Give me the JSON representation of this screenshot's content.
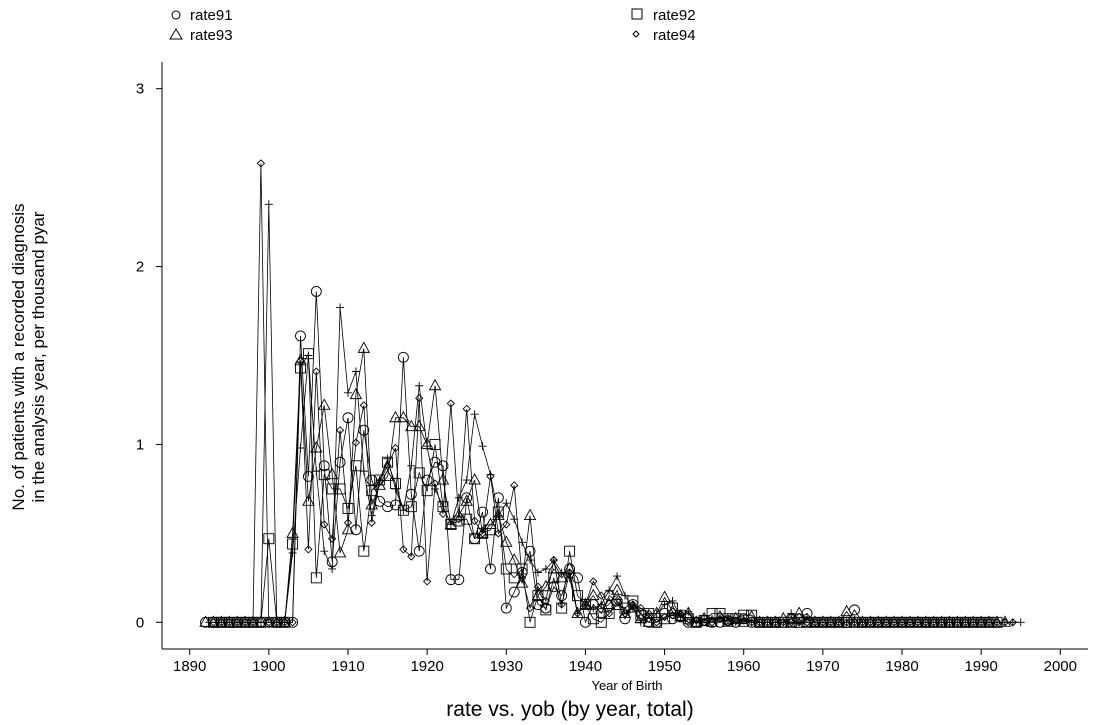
{
  "chart_data": {
    "type": "line",
    "title": "rate vs. yob (by year, total)",
    "xlabel": "Year of Birth",
    "ylabel_lines": [
      "No. of patients with a recorded diagnosis",
      "in the analysis year, per thousand pyar"
    ],
    "xlim": [
      1886.5,
      2003.5
    ],
    "ylim": [
      -0.15,
      3.15
    ],
    "x_ticks": [
      1890,
      1900,
      1910,
      1920,
      1930,
      1940,
      1950,
      1960,
      1970,
      1980,
      1990,
      2000
    ],
    "y_ticks": [
      0,
      1,
      2,
      3
    ],
    "grid": false,
    "legend_position": "top",
    "series": [
      {
        "name": "rate91",
        "marker": "circle",
        "x": [
          1892,
          1893,
          1894,
          1895,
          1896,
          1897,
          1898,
          1899,
          1900,
          1901,
          1902,
          1903,
          1904,
          1905,
          1906,
          1907,
          1908,
          1909,
          1910,
          1911,
          1912,
          1913,
          1914,
          1915,
          1916,
          1917,
          1918,
          1919,
          1920,
          1921,
          1922,
          1923,
          1924,
          1925,
          1926,
          1927,
          1928,
          1929,
          1930,
          1931,
          1932,
          1933,
          1934,
          1935,
          1936,
          1937,
          1938,
          1939,
          1940,
          1941,
          1942,
          1943,
          1944,
          1945,
          1946,
          1947,
          1948,
          1949,
          1950,
          1951,
          1952,
          1953,
          1954,
          1955,
          1956,
          1957,
          1958,
          1959,
          1960,
          1961,
          1962,
          1963,
          1964,
          1965,
          1966,
          1967,
          1968,
          1969,
          1970,
          1971,
          1972,
          1973,
          1974,
          1975,
          1976,
          1977,
          1978,
          1979,
          1980,
          1981,
          1982,
          1983,
          1984,
          1985,
          1986,
          1987,
          1988,
          1989,
          1990,
          1991
        ],
        "y": [
          0,
          0,
          0,
          0,
          0,
          0,
          0,
          0,
          0,
          0,
          0,
          0,
          1.61,
          0.82,
          1.86,
          0.88,
          0.34,
          0.9,
          1.15,
          0.52,
          1.08,
          0.8,
          0.68,
          0.65,
          0.66,
          1.49,
          0.72,
          0.4,
          0.8,
          0.9,
          0.88,
          0.24,
          0.24,
          0.7,
          0.47,
          0.62,
          0.3,
          0.7,
          0.08,
          0.17,
          0.28,
          0.4,
          0.1,
          0.08,
          0.2,
          0.15,
          0.3,
          0.25,
          0,
          0.1,
          0.05,
          0.15,
          0.12,
          0.02,
          0.1,
          0.05,
          0,
          0,
          0.05,
          0.02,
          0.03,
          0,
          0,
          0.01,
          0,
          0,
          0.01,
          0,
          0.02,
          0,
          0,
          0,
          0,
          0,
          0.02,
          0.02,
          0.05,
          0,
          0,
          0,
          0,
          0,
          0.07,
          0,
          0,
          0,
          0,
          0,
          0,
          0,
          0,
          0,
          0,
          0,
          0,
          0,
          0,
          0,
          0,
          0
        ]
      },
      {
        "name": "rate92",
        "marker": "square",
        "x": [
          1893,
          1894,
          1895,
          1896,
          1897,
          1898,
          1899,
          1900,
          1901,
          1902,
          1903,
          1904,
          1905,
          1906,
          1907,
          1908,
          1909,
          1910,
          1911,
          1912,
          1913,
          1914,
          1915,
          1916,
          1917,
          1918,
          1919,
          1920,
          1921,
          1922,
          1923,
          1924,
          1925,
          1926,
          1927,
          1928,
          1929,
          1930,
          1931,
          1932,
          1933,
          1934,
          1935,
          1936,
          1937,
          1938,
          1939,
          1940,
          1941,
          1942,
          1943,
          1944,
          1945,
          1946,
          1947,
          1948,
          1949,
          1950,
          1951,
          1952,
          1953,
          1954,
          1955,
          1956,
          1957,
          1958,
          1959,
          1960,
          1961,
          1962,
          1963,
          1964,
          1965,
          1966,
          1967,
          1968,
          1969,
          1970,
          1971,
          1972,
          1973,
          1974,
          1975,
          1976,
          1977,
          1978,
          1979,
          1980,
          1981,
          1982,
          1983,
          1984,
          1985,
          1986,
          1987,
          1988,
          1989,
          1990,
          1991,
          1992
        ],
        "y": [
          0,
          0,
          0,
          0,
          0,
          0,
          0,
          0.47,
          0,
          0,
          0.44,
          1.43,
          1.51,
          0.25,
          0.83,
          0.75,
          0.75,
          0.64,
          0.88,
          0.4,
          0.74,
          0.8,
          0.9,
          0.78,
          0.63,
          0.65,
          0.84,
          0.74,
          1.0,
          0.65,
          0.55,
          0.57,
          0.58,
          0.47,
          0.5,
          0.52,
          0.62,
          0.3,
          0.25,
          0.3,
          0,
          0.15,
          0.07,
          0.25,
          0.08,
          0.4,
          0.15,
          0.1,
          0.02,
          0,
          0.05,
          0.1,
          0.08,
          0.12,
          0.04,
          0.05,
          0,
          0.02,
          0.08,
          0.04,
          0.02,
          0,
          0.01,
          0.05,
          0.05,
          0.02,
          0.02,
          0.04,
          0.04,
          0,
          0,
          0,
          0,
          0,
          0,
          0,
          0,
          0,
          0,
          0,
          0,
          0,
          0,
          0,
          0,
          0,
          0,
          0,
          0,
          0,
          0,
          0,
          0,
          0,
          0,
          0,
          0,
          0,
          0,
          0
        ]
      },
      {
        "name": "rate93",
        "marker": "triangle",
        "x": [
          1892,
          1893,
          1894,
          1895,
          1896,
          1897,
          1898,
          1899,
          1900,
          1901,
          1902,
          1903,
          1904,
          1905,
          1906,
          1907,
          1908,
          1909,
          1910,
          1911,
          1912,
          1913,
          1914,
          1915,
          1916,
          1917,
          1918,
          1919,
          1920,
          1921,
          1922,
          1923,
          1924,
          1925,
          1926,
          1927,
          1928,
          1929,
          1930,
          1931,
          1932,
          1933,
          1934,
          1935,
          1936,
          1937,
          1938,
          1939,
          1940,
          1941,
          1942,
          1943,
          1944,
          1945,
          1946,
          1947,
          1948,
          1949,
          1950,
          1951,
          1952,
          1953,
          1954,
          1955,
          1956,
          1957,
          1958,
          1959,
          1960,
          1961,
          1962,
          1963,
          1964,
          1965,
          1966,
          1967,
          1968,
          1969,
          1970,
          1971,
          1972,
          1973,
          1974,
          1975,
          1976,
          1977,
          1978,
          1979,
          1980,
          1981,
          1982,
          1983,
          1984,
          1985,
          1986,
          1987,
          1988,
          1989,
          1990,
          1991,
          1992,
          1993
        ],
        "y": [
          0,
          0,
          0,
          0,
          0,
          0,
          0,
          0,
          0,
          0,
          0,
          0.5,
          1.47,
          0.68,
          0.98,
          1.22,
          0.83,
          0.39,
          0.52,
          1.28,
          1.54,
          0.66,
          0.77,
          0.82,
          1.15,
          1.15,
          1.1,
          1.1,
          1.0,
          1.33,
          0.8,
          0.55,
          0.6,
          0.68,
          0.8,
          0.5,
          0.55,
          0.6,
          0.45,
          0.35,
          0.22,
          0.6,
          0.15,
          0.2,
          0.3,
          0.25,
          0.3,
          0.05,
          0.1,
          0.15,
          0.08,
          0.1,
          0.18,
          0.05,
          0.08,
          0.02,
          0,
          0.05,
          0.14,
          0.06,
          0.03,
          0.05,
          0,
          0.02,
          0,
          0.03,
          0,
          0.02,
          0,
          0.03,
          0,
          0,
          0,
          0.02,
          0,
          0.05,
          0,
          0,
          0,
          0,
          0,
          0.06,
          0,
          0,
          0,
          0,
          0,
          0,
          0,
          0,
          0,
          0,
          0,
          0,
          0,
          0,
          0,
          0,
          0,
          0,
          0,
          0
        ]
      },
      {
        "name": "rate94",
        "marker": "diamond",
        "x": [
          1893,
          1894,
          1895,
          1896,
          1897,
          1898,
          1899,
          1900,
          1901,
          1902,
          1903,
          1904,
          1905,
          1906,
          1907,
          1908,
          1909,
          1910,
          1911,
          1912,
          1913,
          1914,
          1915,
          1916,
          1917,
          1918,
          1919,
          1920,
          1921,
          1922,
          1923,
          1924,
          1925,
          1926,
          1927,
          1928,
          1929,
          1930,
          1931,
          1932,
          1933,
          1934,
          1935,
          1936,
          1937,
          1938,
          1939,
          1940,
          1941,
          1942,
          1943,
          1944,
          1945,
          1946,
          1947,
          1948,
          1949,
          1950,
          1951,
          1952,
          1953,
          1954,
          1955,
          1956,
          1957,
          1958,
          1959,
          1960,
          1961,
          1962,
          1963,
          1964,
          1965,
          1966,
          1967,
          1968,
          1969,
          1970,
          1971,
          1972,
          1973,
          1974,
          1975,
          1976,
          1977,
          1978,
          1979,
          1980,
          1981,
          1982,
          1983,
          1984,
          1985,
          1986,
          1987,
          1988,
          1989,
          1990,
          1991,
          1992,
          1993,
          1994
        ],
        "y": [
          0,
          0,
          0,
          0,
          0,
          0,
          2.58,
          0,
          0,
          0,
          0,
          1.47,
          0.41,
          1.41,
          0.55,
          0.47,
          1.08,
          0.56,
          1.01,
          1.22,
          0.56,
          0.79,
          0.88,
          0.98,
          0.41,
          0.37,
          1.26,
          0.23,
          0.78,
          0.61,
          1.23,
          0.58,
          1.2,
          0.57,
          0.5,
          0.82,
          0.5,
          0.55,
          0.77,
          0.25,
          0.08,
          0.2,
          0.12,
          0.35,
          0.1,
          0.28,
          0.05,
          0.1,
          0.23,
          0.15,
          0.05,
          0.12,
          0.05,
          0.1,
          0.08,
          0.05,
          0,
          0.03,
          0.04,
          0.05,
          0,
          0.01,
          0,
          0,
          0.02,
          0,
          0.01,
          0.01,
          0,
          0,
          0,
          0,
          0,
          0,
          0,
          0,
          0,
          0,
          0,
          0,
          0,
          0,
          0,
          0,
          0,
          0,
          0,
          0,
          0,
          0,
          0,
          0,
          0,
          0,
          0,
          0,
          0,
          0,
          0,
          0,
          0,
          0
        ]
      },
      {
        "name": "",
        "marker": "plus",
        "x": [
          1894,
          1895,
          1896,
          1897,
          1898,
          1899,
          1900,
          1901,
          1902,
          1903,
          1904,
          1905,
          1906,
          1907,
          1908,
          1909,
          1910,
          1911,
          1912,
          1913,
          1914,
          1915,
          1916,
          1917,
          1918,
          1919,
          1920,
          1921,
          1922,
          1923,
          1924,
          1925,
          1926,
          1927,
          1928,
          1929,
          1930,
          1931,
          1932,
          1933,
          1934,
          1935,
          1936,
          1937,
          1938,
          1939,
          1940,
          1941,
          1942,
          1943,
          1944,
          1945,
          1946,
          1947,
          1948,
          1949,
          1950,
          1951,
          1952,
          1953,
          1954,
          1955,
          1956,
          1957,
          1958,
          1959,
          1960,
          1961,
          1962,
          1963,
          1964,
          1965,
          1966,
          1967,
          1968,
          1969,
          1970,
          1971,
          1972,
          1973,
          1974,
          1975,
          1976,
          1977,
          1978,
          1979,
          1980,
          1981,
          1982,
          1983,
          1984,
          1985,
          1986,
          1987,
          1988,
          1989,
          1990,
          1991,
          1992,
          1993,
          1994,
          1995
        ],
        "y": [
          0,
          0,
          0,
          0,
          0,
          0,
          2.35,
          0,
          0,
          0.39,
          0.98,
          1.5,
          0.85,
          0.4,
          0.3,
          1.77,
          1.29,
          1.41,
          0.85,
          0.6,
          0.8,
          0.92,
          0.75,
          0.63,
          0.88,
          1.33,
          0.99,
          0.75,
          0.65,
          0.55,
          0.7,
          0.8,
          1.17,
          0.99,
          0.83,
          0.6,
          0.67,
          0.58,
          0.45,
          0.35,
          0.28,
          0.3,
          0.35,
          0.28,
          0.25,
          0.05,
          0.1,
          0.08,
          0.1,
          0.18,
          0.26,
          0.15,
          0.08,
          0,
          0.05,
          0.05,
          0.1,
          0.12,
          0.03,
          0.06,
          0,
          0.02,
          0.02,
          0.02,
          0.03,
          0,
          0.02,
          0,
          0,
          0,
          0,
          0,
          0.05,
          0,
          0.03,
          0,
          0,
          0,
          0,
          0,
          0,
          0,
          0,
          0,
          0,
          0,
          0,
          0,
          0,
          0,
          0,
          0,
          0,
          0,
          0,
          0,
          0,
          0,
          0,
          0,
          0,
          0
        ]
      }
    ]
  }
}
